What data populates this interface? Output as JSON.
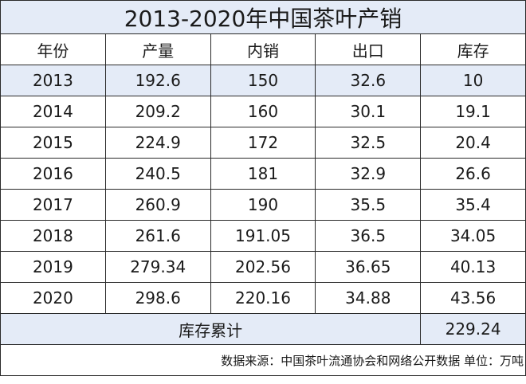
{
  "title": "2013-2020年中国茶叶产销",
  "headers": [
    "年份",
    "产量",
    "内销",
    "出口",
    "库存"
  ],
  "rows": [
    [
      "2013",
      "192.6",
      "150",
      "32.6",
      "10"
    ],
    [
      "2014",
      "209.2",
      "160",
      "30.1",
      "19.1"
    ],
    [
      "2015",
      "224.9",
      "172",
      "32.5",
      "20.4"
    ],
    [
      "2016",
      "240.5",
      "181",
      "32.9",
      "26.6"
    ],
    [
      "2017",
      "260.9",
      "190",
      "35.5",
      "35.4"
    ],
    [
      "2018",
      "261.6",
      "191.05",
      "36.5",
      "34.05"
    ],
    [
      "2019",
      "279.34",
      "202.56",
      "36.65",
      "40.13"
    ],
    [
      "2020",
      "298.6",
      "220.16",
      "34.88",
      "43.56"
    ]
  ],
  "summary": {
    "label": "库存累计",
    "value": "229.24"
  },
  "footnote": "数据来源：中国茶叶流通协会和网络公开数据 单位：万吨",
  "colors": {
    "highlight": "#e4ebf7",
    "border": "#2a2a2a"
  }
}
